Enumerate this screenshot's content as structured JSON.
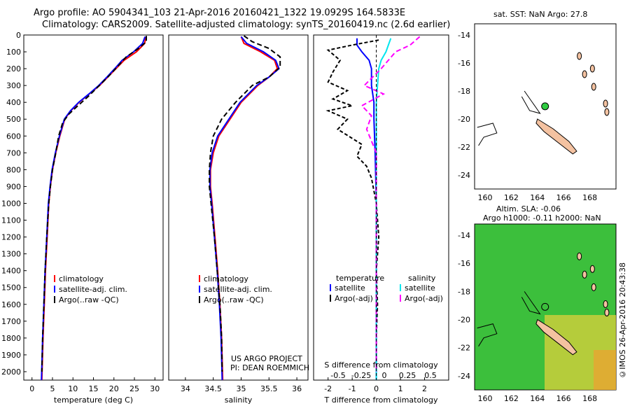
{
  "header": {
    "title_line1": "Argo profile: AO 5904341_103 21-Apr-2016 20160421_1322 19.0929S 164.5833E",
    "title_line2": "Climatology: CARS2009. Satellite-adjusted climatology: synTS_20160419.nc (2.6d earlier)"
  },
  "credit": "©IMOS 26-Apr-2016 20:43:38",
  "map_sst_title": "sat. SST: NaN Argo: 27.8",
  "map_sla_title_line1": "Altim. SLA: -0.06",
  "map_sla_title_line2": "Argo h1000: -0.11 h2000: NaN",
  "project_line1": "US ARGO PROJECT",
  "project_line2": "PI: DEAN ROEMMICH",
  "colors": {
    "climatology": "#ff0000",
    "satellite": "#0000ff",
    "argo": "#000000",
    "satellite_s": "#00e5ee",
    "argo_s": "#ff00ff",
    "land": "#f4c2a1",
    "float": "#2ecc40"
  },
  "chart_data": [
    {
      "type": "line",
      "panel": "temperature",
      "xlabel": "temperature (deg C)",
      "ylabel": "",
      "xlim": [
        -2,
        32
      ],
      "ylim": [
        2050,
        0
      ],
      "xticks": [
        0,
        5,
        10,
        15,
        20,
        25,
        30
      ],
      "yticks": [
        0,
        100,
        200,
        300,
        400,
        500,
        600,
        700,
        800,
        900,
        1000,
        1100,
        1200,
        1300,
        1400,
        1500,
        1600,
        1700,
        1800,
        1900,
        2000
      ],
      "legend": [
        "climatology",
        "satellite-adj. clim.",
        "Argo(..raw -QC)"
      ],
      "series": [
        {
          "name": "climatology",
          "values": [
            [
              27.8,
              10
            ],
            [
              27.5,
              50
            ],
            [
              25.5,
              100
            ],
            [
              22.5,
              150
            ],
            [
              20.5,
              200
            ],
            [
              18.5,
              250
            ],
            [
              16.5,
              300
            ],
            [
              14.0,
              350
            ],
            [
              11.5,
              400
            ],
            [
              9.5,
              450
            ],
            [
              8.0,
              500
            ],
            [
              6.8,
              600
            ],
            [
              5.8,
              700
            ],
            [
              5.0,
              800
            ],
            [
              4.5,
              900
            ],
            [
              4.1,
              1000
            ],
            [
              3.7,
              1200
            ],
            [
              3.3,
              1400
            ],
            [
              3.0,
              1600
            ],
            [
              2.7,
              1800
            ],
            [
              2.4,
              2050
            ]
          ]
        },
        {
          "name": "satellite-adj. clim.",
          "values": [
            [
              27.6,
              10
            ],
            [
              27.0,
              50
            ],
            [
              24.8,
              100
            ],
            [
              22.0,
              150
            ],
            [
              20.2,
              200
            ],
            [
              18.3,
              250
            ],
            [
              16.3,
              300
            ],
            [
              13.9,
              350
            ],
            [
              11.4,
              400
            ],
            [
              9.4,
              450
            ],
            [
              7.9,
              500
            ],
            [
              6.7,
              600
            ],
            [
              5.7,
              700
            ],
            [
              4.9,
              800
            ],
            [
              4.4,
              900
            ],
            [
              4.0,
              1000
            ],
            [
              3.6,
              1200
            ],
            [
              3.2,
              1400
            ],
            [
              2.9,
              1600
            ],
            [
              2.6,
              1800
            ],
            [
              2.3,
              2050
            ]
          ]
        },
        {
          "name": "Argo(..raw -QC)",
          "values": [
            [
              27.9,
              5
            ],
            [
              27.9,
              40
            ],
            [
              26.0,
              80
            ],
            [
              23.0,
              130
            ],
            [
              20.8,
              190
            ],
            [
              18.5,
              250
            ],
            [
              16.0,
              310
            ],
            [
              13.5,
              370
            ],
            [
              11.2,
              420
            ],
            [
              9.0,
              470
            ],
            [
              7.5,
              520
            ],
            [
              6.5,
              600
            ],
            [
              5.8,
              700
            ],
            [
              5.0,
              800
            ],
            [
              4.5,
              900
            ],
            [
              4.1,
              1000
            ],
            [
              3.6,
              1200
            ],
            [
              3.2,
              1400
            ],
            [
              2.9,
              1600
            ],
            [
              2.6,
              1800
            ],
            [
              2.4,
              2000
            ]
          ]
        }
      ]
    },
    {
      "type": "line",
      "panel": "salinity",
      "xlabel": "salinity",
      "xlim": [
        33.7,
        36.2
      ],
      "ylim": [
        2050,
        0
      ],
      "xticks": [
        34,
        34.5,
        35,
        35.5,
        36
      ],
      "legend": [
        "climatology",
        "satellite-adj. clim.",
        "Argo(..raw -QC)"
      ],
      "series": [
        {
          "name": "climatology",
          "values": [
            [
              35.0,
              10
            ],
            [
              35.05,
              50
            ],
            [
              35.35,
              100
            ],
            [
              35.6,
              150
            ],
            [
              35.65,
              200
            ],
            [
              35.5,
              250
            ],
            [
              35.3,
              300
            ],
            [
              35.0,
              400
            ],
            [
              34.8,
              500
            ],
            [
              34.6,
              600
            ],
            [
              34.5,
              700
            ],
            [
              34.45,
              800
            ],
            [
              34.45,
              900
            ],
            [
              34.48,
              1000
            ],
            [
              34.53,
              1200
            ],
            [
              34.58,
              1400
            ],
            [
              34.62,
              1600
            ],
            [
              34.65,
              1800
            ],
            [
              34.67,
              2050
            ]
          ]
        },
        {
          "name": "satellite-adj. clim.",
          "values": [
            [
              35.0,
              10
            ],
            [
              35.1,
              50
            ],
            [
              35.4,
              100
            ],
            [
              35.62,
              150
            ],
            [
              35.68,
              200
            ],
            [
              35.5,
              250
            ],
            [
              35.28,
              300
            ],
            [
              34.98,
              400
            ],
            [
              34.78,
              500
            ],
            [
              34.58,
              600
            ],
            [
              34.48,
              700
            ],
            [
              34.44,
              800
            ],
            [
              34.44,
              900
            ],
            [
              34.47,
              1000
            ],
            [
              34.52,
              1200
            ],
            [
              34.57,
              1400
            ],
            [
              34.61,
              1600
            ],
            [
              34.64,
              1800
            ],
            [
              34.66,
              2050
            ]
          ]
        },
        {
          "name": "Argo(..raw -QC)",
          "values": [
            [
              35.05,
              5
            ],
            [
              35.2,
              40
            ],
            [
              35.5,
              80
            ],
            [
              35.7,
              130
            ],
            [
              35.7,
              190
            ],
            [
              35.5,
              250
            ],
            [
              35.2,
              300
            ],
            [
              34.9,
              400
            ],
            [
              34.65,
              500
            ],
            [
              34.5,
              600
            ],
            [
              34.45,
              700
            ],
            [
              34.43,
              800
            ],
            [
              34.43,
              900
            ],
            [
              34.46,
              1000
            ],
            [
              34.52,
              1200
            ],
            [
              34.57,
              1400
            ],
            [
              34.62,
              1600
            ],
            [
              34.65,
              1800
            ],
            [
              34.66,
              2000
            ]
          ]
        }
      ]
    },
    {
      "type": "line",
      "panel": "difference",
      "xlabel": "T difference from climatology",
      "xlabel_top": "S difference from climatology",
      "xlim": [
        -2.6,
        3.0
      ],
      "ylim": [
        2050,
        0
      ],
      "xticks": [
        -2,
        -1,
        0,
        1,
        2
      ],
      "xticks_s": [
        "-0.5",
        "-0.25",
        "0",
        "0.25",
        "0.5"
      ],
      "legend_headers": [
        "temperature",
        "salinity"
      ],
      "legend": [
        "satellite",
        "Argo(-adj)",
        "satellite",
        "Argo(-adj)"
      ],
      "series": [
        {
          "name": "satellite",
          "values": [
            [
              -0.8,
              20
            ],
            [
              -0.8,
              60
            ],
            [
              -0.6,
              100
            ],
            [
              -0.3,
              150
            ],
            [
              -0.2,
              200
            ],
            [
              -0.2,
              300
            ],
            [
              -0.1,
              400
            ],
            [
              -0.1,
              500
            ],
            [
              -0.05,
              700
            ],
            [
              0,
              1000
            ],
            [
              0,
              2050
            ]
          ]
        },
        {
          "name": "Argo(-adj)",
          "values": [
            [
              0.1,
              30
            ],
            [
              -1.0,
              60
            ],
            [
              -2.0,
              90
            ],
            [
              -1.5,
              150
            ],
            [
              -1.8,
              220
            ],
            [
              -2.0,
              280
            ],
            [
              -1.2,
              330
            ],
            [
              -1.8,
              380
            ],
            [
              -1.0,
              420
            ],
            [
              -2.0,
              450
            ],
            [
              -1.2,
              500
            ],
            [
              -1.6,
              560
            ],
            [
              -0.6,
              650
            ],
            [
              -0.8,
              720
            ],
            [
              -0.4,
              780
            ],
            [
              -0.2,
              850
            ],
            [
              0,
              1000
            ],
            [
              0.1,
              1200
            ],
            [
              0,
              1400
            ],
            [
              0.05,
              1600
            ],
            [
              0,
              1800
            ],
            [
              0,
              2000
            ]
          ]
        },
        {
          "name": "satellite",
          "values": [
            [
              0.6,
              20
            ],
            [
              0.5,
              60
            ],
            [
              0.4,
              100
            ],
            [
              0.2,
              150
            ],
            [
              0.1,
              200
            ],
            [
              0.05,
              300
            ],
            [
              0,
              400
            ],
            [
              0,
              600
            ],
            [
              0,
              1000
            ],
            [
              0,
              2050
            ]
          ]
        },
        {
          "name": "Argo(-adj)",
          "values": [
            [
              1.8,
              10
            ],
            [
              1.4,
              60
            ],
            [
              0.8,
              100
            ],
            [
              0.5,
              150
            ],
            [
              0.2,
              200
            ],
            [
              -0.5,
              300
            ],
            [
              0.3,
              350
            ],
            [
              -0.6,
              420
            ],
            [
              -0.2,
              480
            ],
            [
              -0.4,
              560
            ],
            [
              0,
              700
            ],
            [
              0,
              1000
            ],
            [
              0,
              2000
            ]
          ]
        }
      ]
    }
  ],
  "maps": {
    "lon_ticks": [
      160,
      162,
      164,
      166,
      168
    ],
    "lat_ticks": [
      -14,
      -16,
      -18,
      -20,
      -22,
      -24
    ],
    "float_position": {
      "lon": 164.5833,
      "lat": -19.0929
    }
  }
}
